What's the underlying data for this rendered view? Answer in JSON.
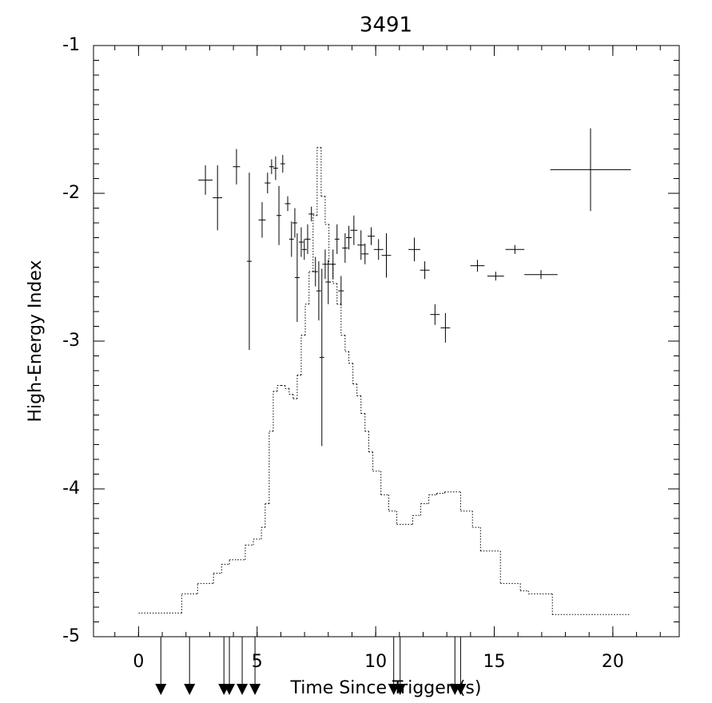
{
  "chart_data": {
    "type": "errorbar",
    "title": "3491",
    "x_label": "Time Since Trigger (s)",
    "y_label": "High-Energy Index",
    "xlim": [
      -1.9,
      22.8
    ],
    "ylim": [
      -5,
      -1
    ],
    "xticks": [
      0,
      5,
      10,
      15,
      20
    ],
    "yticks": [
      -1,
      -2,
      -3,
      -4,
      -5
    ],
    "xminor": 1,
    "yminor": 0.1,
    "color": "#000000",
    "x": [
      2.82,
      3.33,
      4.13,
      4.67,
      5.21,
      5.44,
      5.61,
      5.78,
      5.92,
      6.08,
      6.29,
      6.45,
      6.59,
      6.69,
      6.86,
      6.99,
      7.13,
      7.29,
      7.46,
      7.6,
      7.73,
      7.87,
      8.0,
      8.2,
      8.37,
      8.54,
      8.71,
      8.87,
      9.08,
      9.38,
      9.55,
      9.81,
      10.12,
      10.45,
      11.63,
      12.07,
      12.5,
      12.94,
      14.29,
      15.06,
      15.87,
      16.97,
      19.06
    ],
    "values": [
      -1.91,
      -2.03,
      -1.82,
      -2.46,
      -2.18,
      -1.93,
      -1.82,
      -1.83,
      -2.15,
      -1.8,
      -2.07,
      -2.31,
      -2.2,
      -2.57,
      -2.33,
      -2.38,
      -2.31,
      -2.14,
      -2.53,
      -2.66,
      -3.11,
      -2.48,
      -2.6,
      -2.48,
      -2.31,
      -2.66,
      -2.37,
      -2.3,
      -2.25,
      -2.35,
      -2.41,
      -2.29,
      -2.38,
      -2.42,
      -2.38,
      -2.52,
      -2.82,
      -2.91,
      -2.49,
      -2.56,
      -2.38,
      -2.55,
      -1.84
    ],
    "xerr": [
      0.3,
      0.2,
      0.15,
      0.1,
      0.15,
      0.12,
      0.1,
      0.1,
      0.1,
      0.1,
      0.12,
      0.1,
      0.1,
      0.1,
      0.1,
      0.1,
      0.12,
      0.12,
      0.1,
      0.1,
      0.1,
      0.12,
      0.12,
      0.12,
      0.1,
      0.12,
      0.12,
      0.12,
      0.15,
      0.15,
      0.15,
      0.15,
      0.2,
      0.2,
      0.25,
      0.2,
      0.2,
      0.2,
      0.3,
      0.35,
      0.4,
      0.7,
      1.7
    ],
    "yerr": [
      0.1,
      0.22,
      0.12,
      0.6,
      0.12,
      0.07,
      0.05,
      0.08,
      0.2,
      0.06,
      0.05,
      0.12,
      0.1,
      0.3,
      0.1,
      0.07,
      0.1,
      0.05,
      0.1,
      0.2,
      0.6,
      0.1,
      0.15,
      0.1,
      0.1,
      0.1,
      0.1,
      0.08,
      0.1,
      0.1,
      0.07,
      0.06,
      0.07,
      0.15,
      0.08,
      0.06,
      0.07,
      0.1,
      0.04,
      0.03,
      0.03,
      0.03,
      0.28
    ],
    "step": {
      "edges": [
        0,
        1.82,
        2.49,
        3.16,
        3.5,
        3.83,
        4.17,
        4.5,
        4.84,
        5.18,
        5.34,
        5.51,
        5.68,
        5.85,
        6.02,
        6.18,
        6.35,
        6.52,
        6.69,
        6.86,
        7.03,
        7.19,
        7.36,
        7.53,
        7.7,
        7.87,
        8.03,
        8.2,
        8.37,
        8.54,
        8.71,
        8.87,
        9.04,
        9.21,
        9.38,
        9.55,
        9.71,
        9.88,
        10.22,
        10.55,
        10.89,
        11.56,
        11.9,
        12.24,
        12.57,
        12.91,
        13.58,
        14.08,
        14.42,
        15.26,
        16.1,
        16.44,
        17.45,
        20.71
      ],
      "values": [
        -4.84,
        -4.71,
        -4.64,
        -4.57,
        -4.51,
        -4.48,
        -4.48,
        -4.38,
        -4.34,
        -4.26,
        -4.1,
        -3.61,
        -3.34,
        -3.3,
        -3.3,
        -3.32,
        -3.36,
        -3.39,
        -3.23,
        -2.96,
        -2.75,
        -2.53,
        -2.15,
        -1.69,
        -2.02,
        -2.21,
        -2.48,
        -2.61,
        -2.75,
        -2.96,
        -3.07,
        -3.15,
        -3.29,
        -3.37,
        -3.49,
        -3.61,
        -3.75,
        -3.88,
        -4.04,
        -4.15,
        -4.24,
        -4.18,
        -4.1,
        -4.04,
        -4.03,
        -4.02,
        -4.15,
        -4.26,
        -4.42,
        -4.64,
        -4.69,
        -4.71,
        -4.85
      ]
    },
    "arrows": [
      0.94,
      2.15,
      3.6,
      3.83,
      4.37,
      4.91,
      10.76,
      11.03,
      13.34,
      13.58
    ]
  }
}
